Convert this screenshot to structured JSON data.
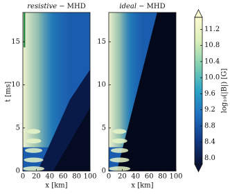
{
  "chart_data": {
    "type": "heatmap",
    "panels": [
      {
        "title_model": "resistive",
        "title_suffix": "− MHD",
        "xlabel": "x [km]",
        "ylabel": "t [ms]"
      },
      {
        "title_model": "ideal",
        "title_suffix": "− MHD",
        "xlabel": "x [km]"
      }
    ],
    "xlim": [
      0,
      100
    ],
    "xticks": [
      0,
      20,
      40,
      60,
      80,
      100
    ],
    "ylim": [
      0,
      18.4
    ],
    "yticks": [
      0,
      5,
      10,
      15
    ],
    "colorbar": {
      "label": "log₁₀(|B|) [G]",
      "lim": [
        7.85,
        11.5
      ],
      "ticks": [
        {
          "value": 8,
          "label": "8.0"
        },
        8.4,
        8.8,
        9.2,
        9.6,
        {
          "value": 10,
          "label": "10.0"
        },
        10.4,
        10.8,
        11.2
      ],
      "colors": [
        "#0a1436",
        "#123a86",
        "#1f6fc0",
        "#2aa3c6",
        "#7fcfb0",
        "#d8eeb8",
        "#fdfbd2"
      ]
    }
  }
}
